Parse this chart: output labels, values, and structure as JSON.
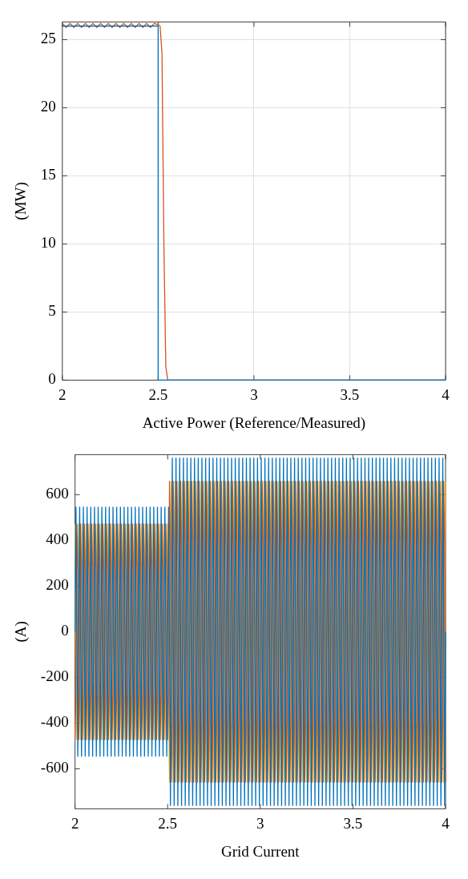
{
  "chart_data": [
    {
      "type": "line",
      "xlabel": "Active Power (Reference/Measured)",
      "ylabel": "(MW)",
      "xlim": [
        2,
        4
      ],
      "xticks": [
        2,
        2.5,
        3,
        3.5,
        4
      ],
      "ylim": [
        0,
        26.3
      ],
      "yticks": [
        0,
        5,
        10,
        15,
        20,
        25
      ],
      "grid": true,
      "series": [
        {
          "color": "#0072bd",
          "x": [
            2,
            2.5,
            2.5,
            4
          ],
          "values": [
            26,
            26,
            0,
            0
          ]
        },
        {
          "color": "#d95319",
          "x": [
            2,
            2.02,
            2.04,
            2.06,
            2.08,
            2.1,
            2.12,
            2.14,
            2.16,
            2.18,
            2.2,
            2.22,
            2.24,
            2.26,
            2.28,
            2.3,
            2.32,
            2.34,
            2.36,
            2.38,
            2.4,
            2.42,
            2.44,
            2.46,
            2.48,
            2.5,
            2.51,
            2.52,
            2.53,
            2.54,
            2.55,
            4
          ],
          "values": [
            26.2,
            25.9,
            26.2,
            25.9,
            26.2,
            25.9,
            26.2,
            25.9,
            26.2,
            25.9,
            26.2,
            25.9,
            26.2,
            25.9,
            26.2,
            25.9,
            26.2,
            25.9,
            26.2,
            25.9,
            26.2,
            25.9,
            26.2,
            25.9,
            26.2,
            26.1,
            26,
            24,
            10,
            1,
            0,
            0
          ]
        }
      ]
    },
    {
      "type": "line",
      "xlabel": "Grid Current",
      "ylabel": "(A)",
      "xlim": [
        2,
        4
      ],
      "xticks": [
        2,
        2.5,
        3,
        3.5,
        4
      ],
      "ylim": [
        -775,
        775
      ],
      "yticks": [
        -600,
        -400,
        -200,
        0,
        200,
        400,
        600
      ],
      "grid": false,
      "x": [
        2,
        2.005,
        2.01,
        2.015,
        2.02,
        2.025,
        2.03,
        2.035,
        2.04,
        2.045,
        2.05,
        2.055,
        2.06,
        2.065,
        2.07,
        2.075,
        2.08,
        2.085,
        2.09,
        2.095,
        2.1,
        2.105,
        2.11,
        2.115,
        2.12,
        2.125,
        2.13,
        2.135,
        2.14,
        2.145,
        2.15,
        2.155,
        2.16,
        2.165,
        2.17,
        2.175,
        2.18,
        2.185,
        2.19,
        2.195,
        2.2,
        2.205,
        2.21,
        2.215,
        2.22,
        2.225,
        2.23,
        2.235,
        2.24,
        2.245,
        2.25,
        2.255,
        2.26,
        2.265,
        2.27,
        2.275,
        2.28,
        2.285,
        2.29,
        2.295,
        2.3,
        2.305,
        2.31,
        2.315,
        2.32,
        2.325,
        2.33,
        2.335,
        2.34,
        2.345,
        2.35,
        2.355,
        2.36,
        2.365,
        2.37,
        2.375,
        2.38,
        2.385,
        2.39,
        2.395,
        2.4,
        2.405,
        2.41,
        2.415,
        2.42,
        2.425,
        2.43,
        2.435,
        2.44,
        2.445,
        2.45,
        2.455,
        2.46,
        2.465,
        2.47,
        2.475,
        2.48,
        2.485,
        2.49,
        2.495,
        2.5,
        2.505,
        2.51,
        2.515,
        2.52,
        2.525,
        2.53,
        2.535,
        2.54,
        2.545,
        2.55,
        2.555,
        2.56,
        2.565,
        2.57,
        2.575,
        2.58,
        2.585,
        2.59,
        2.595,
        2.6,
        2.605,
        2.61,
        2.615,
        2.62,
        2.625,
        2.63,
        2.635,
        2.64,
        2.645,
        2.65,
        2.655,
        2.66,
        2.665,
        2.67,
        2.675,
        2.68,
        2.685,
        2.69,
        2.695,
        2.7,
        2.705,
        2.71,
        2.715,
        2.72,
        2.725,
        2.73,
        2.735,
        2.74,
        2.745,
        2.75,
        2.755,
        2.76,
        2.765,
        2.77,
        2.775,
        2.78,
        2.785,
        2.79,
        2.795,
        2.8,
        2.805,
        2.81,
        2.815,
        2.82,
        2.825,
        2.83,
        2.835,
        2.84,
        2.845,
        2.85,
        2.855,
        2.86,
        2.865,
        2.87,
        2.875,
        2.88,
        2.885,
        2.89,
        2.895,
        2.9,
        2.905,
        2.91,
        2.915,
        2.92,
        2.925,
        2.93,
        2.935,
        2.94,
        2.945,
        2.95,
        2.955,
        2.96,
        2.965,
        2.97,
        2.975,
        2.98,
        2.985,
        2.99,
        2.995,
        3,
        3.005,
        3.01,
        3.015,
        3.02,
        3.025,
        3.03,
        3.035,
        3.04,
        3.045,
        3.05,
        3.055,
        3.06,
        3.065,
        3.07,
        3.075,
        3.08,
        3.085,
        3.09,
        3.095,
        3.1,
        3.105,
        3.11,
        3.115,
        3.12,
        3.125,
        3.13,
        3.135,
        3.14,
        3.145,
        3.15,
        3.155,
        3.16,
        3.165,
        3.17,
        3.175,
        3.18,
        3.185,
        3.19,
        3.195,
        3.2,
        3.205,
        3.21,
        3.215,
        3.22,
        3.225,
        3.23,
        3.235,
        3.24,
        3.245,
        3.25,
        3.255,
        3.26,
        3.265,
        3.27,
        3.275,
        3.28,
        3.285,
        3.29,
        3.295,
        3.3,
        3.305,
        3.31,
        3.315,
        3.32,
        3.325,
        3.33,
        3.335,
        3.34,
        3.345,
        3.35,
        3.355,
        3.36,
        3.365,
        3.37,
        3.375,
        3.38,
        3.385,
        3.39,
        3.395,
        3.4,
        3.405,
        3.41,
        3.415,
        3.42,
        3.425,
        3.43,
        3.435,
        3.44,
        3.445,
        3.45,
        3.455,
        3.46,
        3.465,
        3.47,
        3.475,
        3.48,
        3.485,
        3.49,
        3.495,
        3.5,
        3.505,
        3.51,
        3.515,
        3.52,
        3.525,
        3.53,
        3.535,
        3.54,
        3.545,
        3.55,
        3.555,
        3.56,
        3.565,
        3.57,
        3.575,
        3.58,
        3.585,
        3.59,
        3.595,
        3.6,
        3.605,
        3.61,
        3.615,
        3.62,
        3.625,
        3.63,
        3.635,
        3.64,
        3.645,
        3.65,
        3.655,
        3.66,
        3.665,
        3.67,
        3.675,
        3.68,
        3.685,
        3.69,
        3.695,
        3.7,
        3.705,
        3.71,
        3.715,
        3.72,
        3.725,
        3.73,
        3.735,
        3.74,
        3.745,
        3.75,
        3.755,
        3.76,
        3.765,
        3.77,
        3.775,
        3.78,
        3.785,
        3.79,
        3.795,
        3.8,
        3.805,
        3.81,
        3.815,
        3.82,
        3.825,
        3.83,
        3.835,
        3.84,
        3.845,
        3.85,
        3.855,
        3.86,
        3.865,
        3.87,
        3.875,
        3.88,
        3.885,
        3.89,
        3.895,
        3.9,
        3.905,
        3.91,
        3.915,
        3.92,
        3.925,
        3.93,
        3.935,
        3.94,
        3.945,
        3.95,
        3.955,
        3.96,
        3.965,
        3.97,
        3.975,
        3.98,
        3.985,
        3.99,
        3.995,
        4
      ],
      "series": [
        {
          "color": "#0072bd",
          "values": [
            0,
            545,
            0,
            -545,
            0,
            545,
            0,
            -545,
            0,
            545,
            0,
            -545,
            0,
            545,
            0,
            -545,
            0,
            545,
            0,
            -545,
            0,
            545,
            0,
            -545,
            0,
            545,
            0,
            -545,
            0,
            545,
            0,
            -545,
            0,
            545,
            0,
            -545,
            0,
            545,
            0,
            -545,
            0,
            545,
            0,
            -545,
            0,
            545,
            0,
            -545,
            0,
            545,
            0,
            -545,
            0,
            545,
            0,
            -545,
            0,
            545,
            0,
            -545,
            0,
            545,
            0,
            -545,
            0,
            545,
            0,
            -545,
            0,
            545,
            0,
            -545,
            0,
            545,
            0,
            -545,
            0,
            545,
            0,
            -545,
            0,
            545,
            0,
            -545,
            0,
            545,
            0,
            -545,
            0,
            545,
            0,
            -545,
            0,
            545,
            0,
            -545,
            0,
            545,
            0,
            -545,
            0,
            545,
            0,
            -760,
            0,
            760,
            0,
            -760,
            0,
            760,
            0,
            -760,
            0,
            760,
            0,
            -760,
            0,
            760,
            0,
            -760,
            0,
            760,
            0,
            -760,
            0,
            760,
            0,
            -760,
            0,
            760,
            0,
            -760,
            0,
            760,
            0,
            -760,
            0,
            760,
            0,
            -760,
            0,
            760,
            0,
            -760,
            0,
            760,
            0,
            -760,
            0,
            760,
            0,
            -760,
            0,
            760,
            0,
            -760,
            0,
            760,
            0,
            -760,
            0,
            760,
            0,
            -760,
            0,
            760,
            0,
            -760,
            0,
            760,
            0,
            -760,
            0,
            760,
            0,
            -760,
            0,
            760,
            0,
            -760,
            0,
            760,
            0,
            -760,
            0,
            760,
            0,
            -760,
            0,
            760,
            0,
            -760,
            0,
            760,
            0,
            -760,
            0,
            760,
            0,
            -760,
            0,
            760,
            0,
            -760,
            0,
            760,
            0,
            -760,
            0,
            760,
            0,
            -760,
            0,
            760,
            0,
            -760,
            0,
            760,
            0,
            -760,
            0,
            760,
            0,
            -760,
            0,
            760,
            0,
            -760,
            0,
            760,
            0,
            -760,
            0,
            760,
            0,
            -760,
            0,
            760,
            0,
            -760,
            0,
            760,
            0,
            -760,
            0,
            760,
            0,
            -760,
            0,
            760,
            0,
            -760,
            0,
            760,
            0,
            -760,
            0,
            760,
            0,
            -760,
            0,
            760,
            0,
            -760,
            0,
            760,
            0,
            -760,
            0,
            760,
            0,
            -760,
            0,
            760,
            0,
            -760,
            0,
            760,
            0,
            -760,
            0,
            760,
            0,
            -760,
            0,
            760,
            0,
            -760,
            0,
            760,
            0,
            -760,
            0,
            760,
            0,
            -760,
            0,
            760,
            0,
            -760,
            0,
            760,
            0,
            -760,
            0,
            760,
            0,
            -760,
            0,
            760,
            0,
            -760,
            0,
            760,
            0,
            -760,
            0,
            760,
            0,
            -760,
            0,
            760,
            0,
            -760,
            0,
            760,
            0,
            -760,
            0,
            760,
            0,
            -760,
            0,
            760,
            0,
            -760,
            0,
            760,
            0,
            -760,
            0,
            760,
            0,
            -760,
            0,
            760,
            0,
            -760,
            0,
            760,
            0,
            -760,
            0,
            760,
            0,
            -760,
            0,
            760,
            0,
            -760,
            0,
            760,
            0,
            -760,
            0,
            760,
            0,
            -760,
            0,
            760,
            0,
            -760,
            0,
            760,
            0,
            -760,
            0,
            760,
            0,
            -760,
            0,
            760,
            0,
            -760,
            0,
            760,
            0,
            -760,
            0,
            760,
            0,
            -760,
            0,
            760,
            0,
            -760,
            0,
            760,
            0,
            -760,
            0
          ]
        },
        {
          "color": "#d95319",
          "values": [
            -472,
            -272,
            472,
            272,
            -472,
            -272,
            472,
            272,
            -472,
            -272,
            472,
            272,
            -472,
            -272,
            472,
            272,
            -472,
            -272,
            472,
            272,
            -472,
            -272,
            472,
            272,
            -472,
            -272,
            472,
            272,
            -472,
            -272,
            472,
            272,
            -472,
            -272,
            472,
            272,
            -472,
            -272,
            472,
            272,
            -472,
            -272,
            472,
            272,
            -472,
            -272,
            472,
            272,
            -472,
            -272,
            472,
            272,
            -472,
            -272,
            472,
            272,
            -472,
            -272,
            472,
            272,
            -472,
            -272,
            472,
            272,
            -472,
            -272,
            472,
            272,
            -472,
            -272,
            472,
            272,
            -472,
            -272,
            472,
            272,
            -472,
            -272,
            472,
            272,
            -472,
            -272,
            472,
            272,
            -472,
            -272,
            472,
            272,
            -472,
            -272,
            472,
            272,
            -472,
            -272,
            472,
            272,
            -472,
            -272,
            472,
            272,
            -472,
            -272,
            658,
            380,
            -658,
            -380,
            658,
            380,
            -658,
            -380,
            658,
            380,
            -658,
            -380,
            658,
            380,
            -658,
            -380,
            658,
            380,
            -658,
            -380,
            658,
            380,
            -658,
            -380,
            658,
            380,
            -658,
            -380,
            658,
            380,
            -658,
            -380,
            658,
            380,
            -658,
            -380,
            658,
            380,
            -658,
            -380,
            658,
            380,
            -658,
            -380,
            658,
            380,
            -658,
            -380,
            658,
            380,
            -658,
            -380,
            658,
            380,
            -658,
            -380,
            658,
            380,
            -658,
            -380,
            658,
            380,
            -658,
            -380,
            658,
            380,
            -658,
            -380,
            658,
            380,
            -658,
            -380,
            658,
            380,
            -658,
            -380,
            658,
            380,
            -658,
            -380,
            658,
            380,
            -658,
            -380,
            658,
            380,
            -658,
            -380,
            658,
            380,
            -658,
            -380,
            658,
            380,
            -658,
            -380,
            658,
            380,
            -658,
            -380,
            658,
            380,
            -658,
            -380,
            658,
            380,
            -658,
            -380,
            658,
            380,
            -658,
            -380,
            658,
            380,
            -658,
            -380,
            658,
            380,
            -658,
            -380,
            658,
            380,
            -658,
            -380,
            658,
            380,
            -658,
            -380,
            658,
            380,
            -658,
            -380,
            658,
            380,
            -658,
            -380,
            658,
            380,
            -658,
            -380,
            658,
            380,
            -658,
            -380,
            658,
            380,
            -658,
            -380,
            658,
            380,
            -658,
            -380,
            658,
            380,
            -658,
            -380,
            658,
            380,
            -658,
            -380,
            658,
            380,
            -658,
            -380,
            658,
            380,
            -658,
            -380,
            658,
            380,
            -658,
            -380,
            658,
            380,
            -658,
            -380,
            658,
            380,
            -658,
            -380,
            658,
            380,
            -658,
            -380,
            658,
            380,
            -658,
            -380,
            658,
            380,
            -658,
            -380,
            658,
            380,
            -658,
            -380,
            658,
            380,
            -658,
            -380,
            658,
            380,
            -658,
            -380,
            658,
            380,
            -658,
            -380,
            658,
            380,
            -658,
            -380,
            658,
            380,
            -658,
            -380,
            658,
            380,
            -658,
            -380,
            658,
            380,
            -658,
            -380,
            658,
            380,
            -658,
            -380,
            658,
            380,
            -658,
            -380,
            658,
            380,
            -658,
            -380,
            658,
            380,
            -658,
            -380,
            658,
            380,
            -658,
            -380,
            658,
            380,
            -658,
            -380,
            658,
            380,
            -658,
            -380,
            658,
            380,
            -658,
            -380,
            658,
            380,
            -658,
            -380,
            658,
            380,
            -658,
            -380,
            658,
            380,
            -658,
            -380,
            658,
            380,
            -658,
            -380,
            658,
            380,
            -658,
            -380,
            658,
            380,
            -658,
            -380,
            658,
            380,
            -658,
            -380,
            658,
            380,
            -658,
            -380,
            658,
            380,
            -658,
            -380,
            658,
            380,
            -658,
            -380,
            658,
            380,
            -658
          ]
        },
        {
          "color": "#edb120",
          "values": [
            472,
            -272,
            -472,
            272,
            472,
            -272,
            -472,
            272,
            472,
            -272,
            -472,
            272,
            472,
            -272,
            -472,
            272,
            472,
            -272,
            -472,
            272,
            472,
            -272,
            -472,
            272,
            472,
            -272,
            -472,
            272,
            472,
            -272,
            -472,
            272,
            472,
            -272,
            -472,
            272,
            472,
            -272,
            -472,
            272,
            472,
            -272,
            -472,
            272,
            472,
            -272,
            -472,
            272,
            472,
            -272,
            -472,
            272,
            472,
            -272,
            -472,
            272,
            472,
            -272,
            -472,
            272,
            472,
            -272,
            -472,
            272,
            472,
            -272,
            -472,
            272,
            472,
            -272,
            -472,
            272,
            472,
            -272,
            -472,
            272,
            472,
            -272,
            -472,
            272,
            472,
            -272,
            -472,
            272,
            472,
            -272,
            -472,
            272,
            472,
            -272,
            -472,
            272,
            472,
            -272,
            -472,
            272,
            472,
            -272,
            -472,
            272,
            472,
            -272,
            -658,
            380,
            658,
            -380,
            -658,
            380,
            658,
            -380,
            -658,
            380,
            658,
            -380,
            -658,
            380,
            658,
            -380,
            -658,
            380,
            658,
            -380,
            -658,
            380,
            658,
            -380,
            -658,
            380,
            658,
            -380,
            -658,
            380,
            658,
            -380,
            -658,
            380,
            658,
            -380,
            -658,
            380,
            658,
            -380,
            -658,
            380,
            658,
            -380,
            -658,
            380,
            658,
            -380,
            -658,
            380,
            658,
            -380,
            -658,
            380,
            658,
            -380,
            -658,
            380,
            658,
            -380,
            -658,
            380,
            658,
            -380,
            -658,
            380,
            658,
            -380,
            -658,
            380,
            658,
            -380,
            -658,
            380,
            658,
            -380,
            -658,
            380,
            658,
            -380,
            -658,
            380,
            658,
            -380,
            -658,
            380,
            658,
            -380,
            -658,
            380,
            658,
            -380,
            -658,
            380,
            658,
            -380,
            -658,
            380,
            658,
            -380,
            -658,
            380,
            658,
            -380,
            -658,
            380,
            658,
            -380,
            -658,
            380,
            658,
            -380,
            -658,
            380,
            658,
            -380,
            -658,
            380,
            658,
            -380,
            -658,
            380,
            658,
            -380,
            -658,
            380,
            658,
            -380,
            -658,
            380,
            658,
            -380,
            -658,
            380,
            658,
            -380,
            -658,
            380,
            658,
            -380,
            -658,
            380,
            658,
            -380,
            -658,
            380,
            658,
            -380,
            -658,
            380,
            658,
            -380,
            -658,
            380,
            658,
            -380,
            -658,
            380,
            658,
            -380,
            -658,
            380,
            658,
            -380,
            -658,
            380,
            658,
            -380,
            -658,
            380,
            658,
            -380,
            -658,
            380,
            658,
            -380,
            -658,
            380,
            658,
            -380,
            -658,
            380,
            658,
            -380,
            -658,
            380,
            658,
            -380,
            -658,
            380,
            658,
            -380,
            -658,
            380,
            658,
            -380,
            -658,
            380,
            658,
            -380,
            -658,
            380,
            658,
            -380,
            -658,
            380,
            658,
            -380,
            -658,
            380,
            658,
            -380,
            -658,
            380,
            658,
            -380,
            -658,
            380,
            658,
            -380,
            -658,
            380,
            658,
            -380,
            -658,
            380,
            658,
            -380,
            -658,
            380,
            658,
            -380,
            -658,
            380,
            658,
            -380,
            -658,
            380,
            658,
            -380,
            -658,
            380,
            658,
            -380,
            -658,
            380,
            658,
            -380,
            -658,
            380,
            658,
            -380,
            -658,
            380,
            658,
            -380,
            -658,
            380,
            658,
            -380,
            -658,
            380,
            658,
            -380,
            -658,
            380,
            658,
            -380,
            -658,
            380,
            658,
            -380,
            -658,
            380,
            658,
            -380,
            -658,
            380,
            658,
            -380,
            -658,
            380,
            658,
            -380,
            -658,
            380,
            658,
            -380,
            -658,
            380,
            658,
            -380,
            -658,
            380,
            658,
            -380,
            -658,
            380,
            658
          ]
        }
      ]
    }
  ]
}
